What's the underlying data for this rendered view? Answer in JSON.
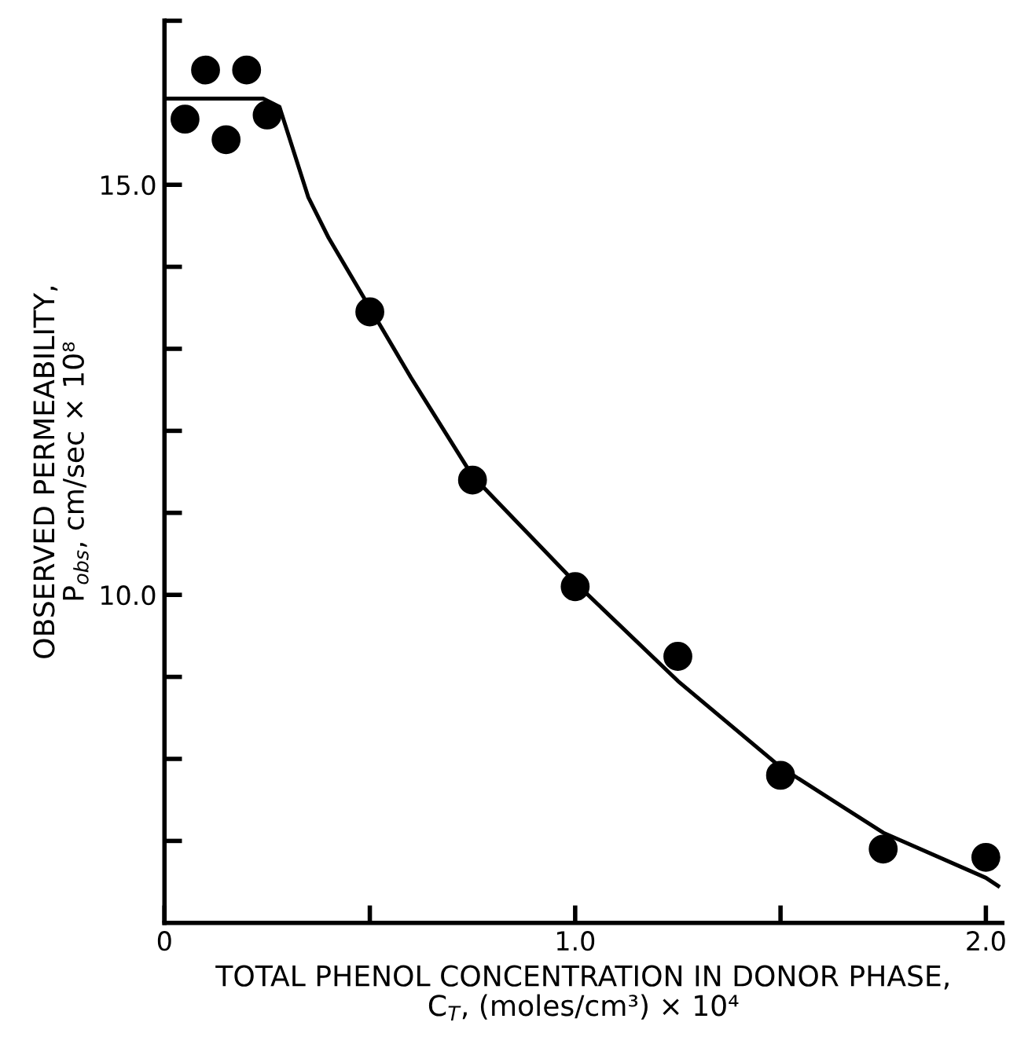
{
  "chart_data": {
    "type": "scatter",
    "xlabel": "TOTAL PHENOL CONCENTRATION IN DONOR PHASE,\nC$_{T}$, (moles/cm³) × 10⁴",
    "ylabel": "OBSERVED PERMEABILITY,\nP$_{obs}$, cm/sec × 10⁸",
    "series": [
      {
        "color": "#000000",
        "marker": "circle",
        "x": [
          0.05,
          0.1,
          0.15,
          0.2,
          0.25,
          0.5,
          0.75,
          1.0,
          1.25,
          1.5,
          1.75,
          2.0
        ],
        "values": [
          15.8,
          16.4,
          15.55,
          16.4,
          15.85,
          13.45,
          11.4,
          10.1,
          9.25,
          7.8,
          6.9,
          6.8
        ]
      },
      {
        "type": "line",
        "color": "#000000",
        "marker": "none",
        "x": [
          0,
          0.24,
          0.28,
          0.35,
          0.4,
          0.5,
          0.6,
          0.75,
          1.0,
          1.25,
          1.5,
          1.75,
          2.0,
          2.03
        ],
        "values": [
          16.05,
          16.05,
          15.95,
          14.85,
          14.35,
          13.5,
          12.65,
          11.45,
          10.15,
          8.95,
          7.9,
          7.1,
          6.55,
          6.45
        ]
      }
    ],
    "xlim": [
      0,
      2.04
    ],
    "ylim": [
      6,
      17
    ],
    "xticks": [
      0,
      {
        "value": 0.5,
        "label": null
      },
      {
        "value": 1.0,
        "label": "1.0"
      },
      {
        "value": 1.5,
        "label": null
      },
      {
        "value": 2.0,
        "label": "2.0"
      }
    ],
    "yticks": [
      {
        "value": 7,
        "label": null
      },
      {
        "value": 8,
        "label": null
      },
      {
        "value": 9,
        "label": null
      },
      {
        "value": 10,
        "label": "10.0"
      },
      {
        "value": 11,
        "label": null
      },
      {
        "value": 12,
        "label": null
      },
      {
        "value": 13,
        "label": null
      },
      {
        "value": 14,
        "label": null
      },
      {
        "value": 15,
        "label": "15.0"
      },
      {
        "value": 17,
        "label": null
      }
    ],
    "grid": false
  }
}
